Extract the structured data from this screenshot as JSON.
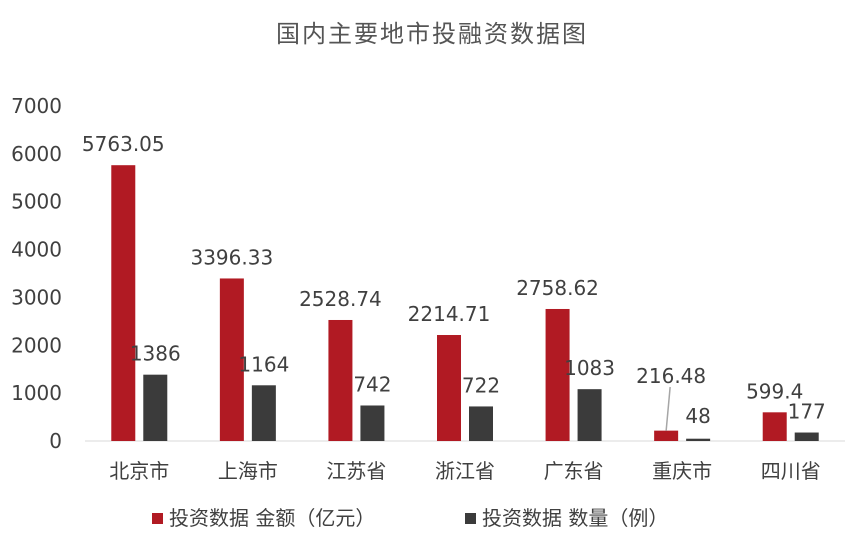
{
  "chart_data": {
    "type": "bar",
    "title": "国内主要地市投融资数据图",
    "xlabel": "",
    "ylabel": "",
    "ylim": [
      0,
      7000
    ],
    "yticks": [
      0,
      1000,
      2000,
      3000,
      4000,
      5000,
      6000,
      7000
    ],
    "categories": [
      "北京市",
      "上海市",
      "江苏省",
      "浙江省",
      "广东省",
      "重庆市",
      "四川省"
    ],
    "series": [
      {
        "name": "投资数据 金额（亿元）",
        "color": "#B11A23",
        "values": [
          5763.05,
          3396.33,
          2528.74,
          2214.71,
          2758.62,
          216.48,
          599.4
        ],
        "labels": [
          "5763.05",
          "3396.33",
          "2528.74",
          "2214.71",
          "2758.62",
          "216.48",
          "599.4"
        ]
      },
      {
        "name": "投资数据 数量（例）",
        "color": "#3B3B3B",
        "values": [
          1386,
          1164,
          742,
          722,
          1083,
          48,
          177
        ],
        "labels": [
          "1386",
          "1164",
          "742",
          "722",
          "1083",
          "48",
          "177"
        ]
      }
    ],
    "legend_position": "bottom",
    "grid": false
  }
}
